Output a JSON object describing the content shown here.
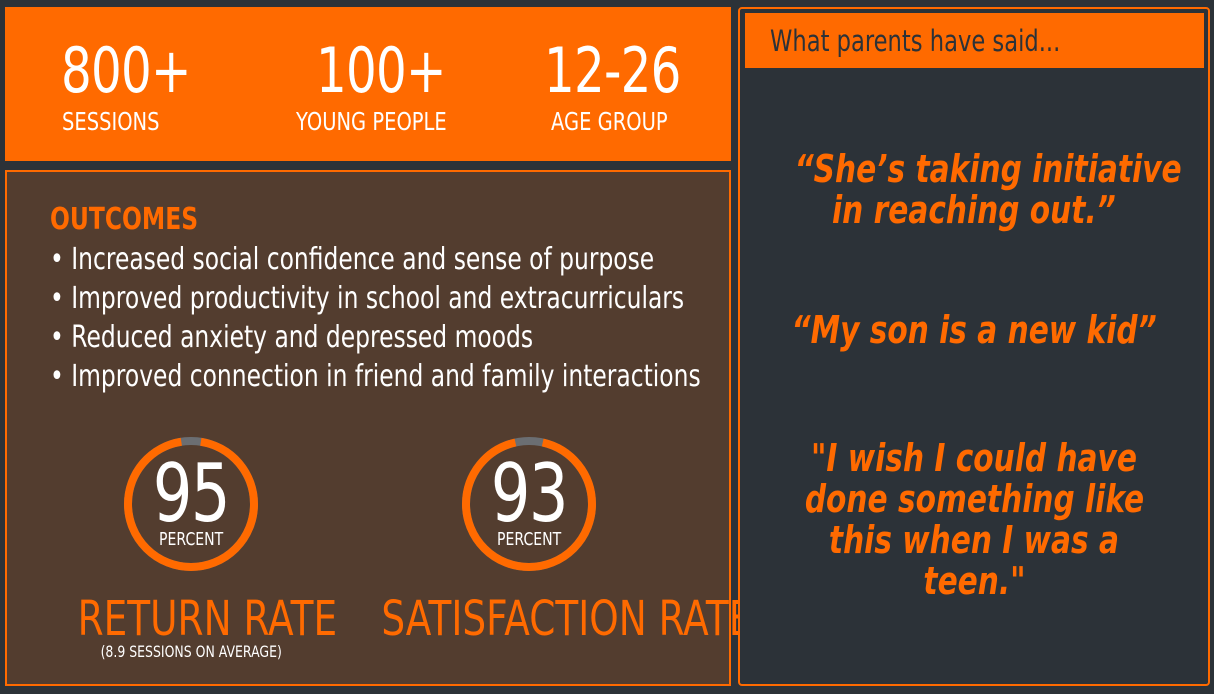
{
  "stats": [
    {
      "value": "800+",
      "label": "SESSIONS"
    },
    {
      "value": "100+",
      "label": "YOUNG PEOPLE"
    },
    {
      "value": "12-26",
      "label": "AGE GROUP"
    }
  ],
  "outcomes": {
    "heading": "OUTCOMES",
    "items": [
      "• Increased social confidence and sense of purpose",
      "• Improved productivity in school and extracurriculars",
      "• Reduced anxiety and depressed moods",
      "• Improved connection in friend and family interactions"
    ]
  },
  "rates": [
    {
      "value": 95,
      "display": "95",
      "unit": "PERCENT",
      "label": "RETURN RATE",
      "note": "(8.9 SESSIONS ON AVERAGE)"
    },
    {
      "value": 93,
      "display": "93",
      "unit": "PERCENT",
      "label": "SATISFACTION RATE"
    }
  ],
  "testimonials": {
    "title": "What parents have said...",
    "quotes": [
      {
        "line1": "“She’s taking initiative",
        "line2": "in reaching out.”"
      },
      {
        "line1": "“My son is a new kid”"
      },
      {
        "line1": "\"I wish I could have",
        "line2": "done something like",
        "line3": "this when I was a",
        "line4": "teen.\""
      }
    ]
  },
  "colors": {
    "accent": "#ff6a00",
    "panel_brown": "#533d2f",
    "background": "#2c3238",
    "gauge_track": "#6b6e72"
  }
}
